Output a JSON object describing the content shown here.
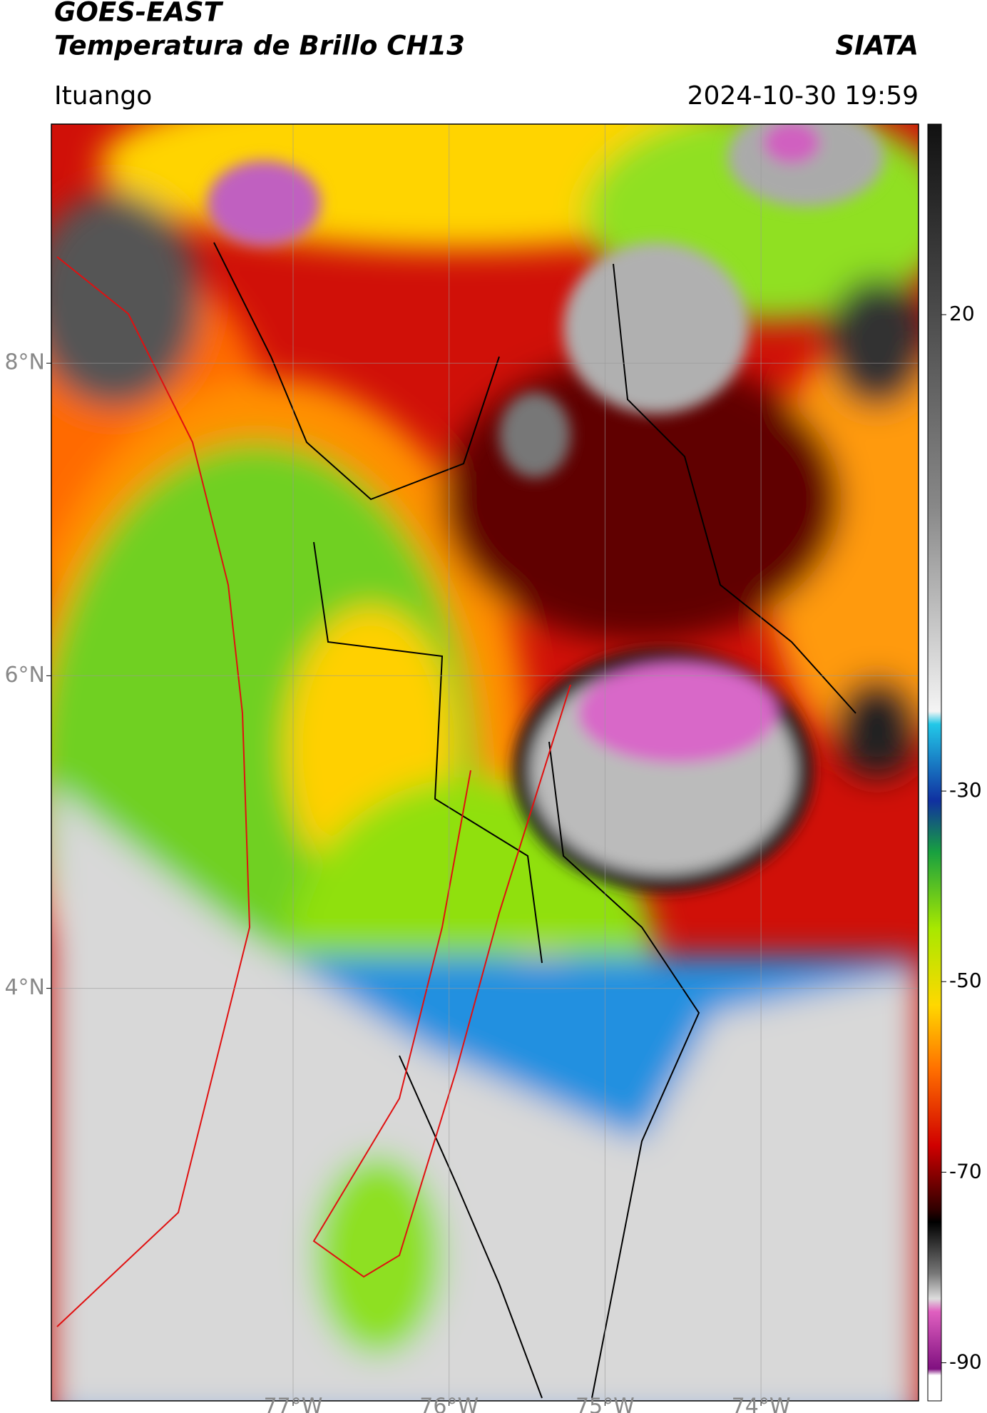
{
  "header": {
    "title": "GOES-EAST",
    "subtitle": "Temperatura de Brillo CH13",
    "source": "SIATA",
    "location": "Ituango",
    "timestamp": "2024-10-30 19:59"
  },
  "map": {
    "xlim": [
      -78.55,
      -72.99
    ],
    "ylim": [
      1.36,
      9.53
    ],
    "xticks": [
      {
        "value": -77,
        "label": "77°W"
      },
      {
        "value": -76,
        "label": "76°W"
      },
      {
        "value": -75,
        "label": "75°W"
      },
      {
        "value": -74,
        "label": "74°W"
      }
    ],
    "yticks": [
      {
        "value": 8,
        "label": "8°N"
      },
      {
        "value": 6,
        "label": "6°N"
      },
      {
        "value": 4,
        "label": "4°N"
      }
    ],
    "grid": true
  },
  "colorbar": {
    "lim": [
      -94,
      40
    ],
    "ticks": [
      20,
      -30,
      -50,
      -70,
      -90
    ]
  }
}
